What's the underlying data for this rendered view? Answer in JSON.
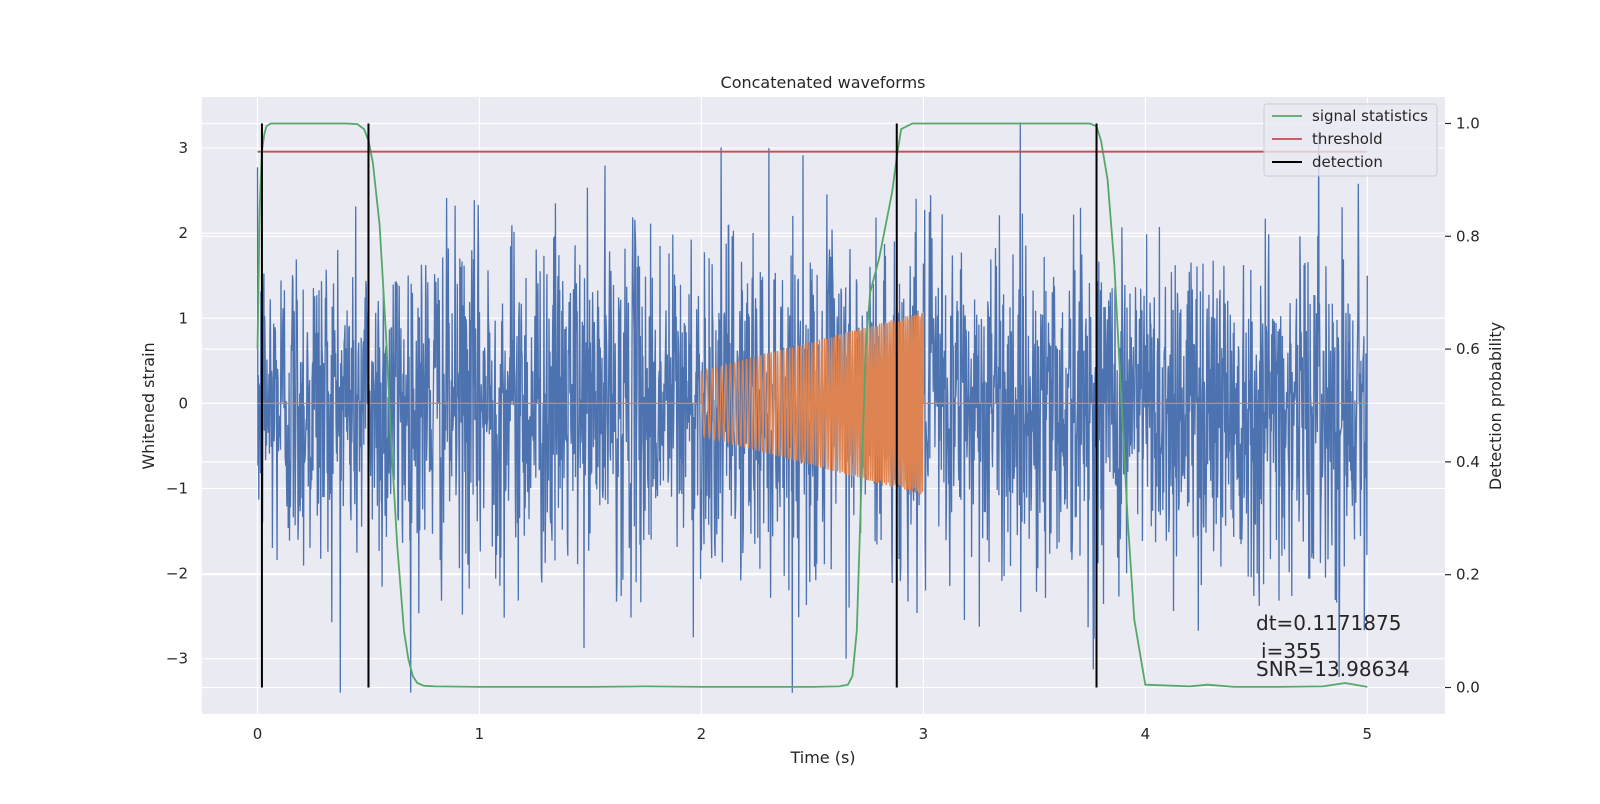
{
  "chart_data": {
    "type": "line",
    "title": "Concatenated waveforms",
    "xlabel": "Time (s)",
    "ylabel": "Whitened strain",
    "ylabel_right": "Detection probability",
    "xlim": [
      -0.25,
      5.35
    ],
    "ylim": [
      -3.65,
      3.6
    ],
    "ylim_right": [
      -0.047,
      1.047
    ],
    "xticks": [
      0,
      1,
      2,
      3,
      4,
      5
    ],
    "yticks": [
      -3,
      -2,
      -1,
      0,
      1,
      2,
      3
    ],
    "yticks_right": [
      0.0,
      0.2,
      0.4,
      0.6,
      0.8,
      1.0
    ],
    "yticks_right_labels": [
      "0.0",
      "0.2",
      "0.4",
      "0.6",
      "0.8",
      "1.0"
    ],
    "grid": true,
    "legend_position": "top-right",
    "legend": [
      {
        "label": "signal statistics",
        "color": "#55a868"
      },
      {
        "label": "threshold",
        "color": "#c44e52"
      },
      {
        "label": "detection",
        "color": "#000000"
      }
    ],
    "colors": {
      "noise": "#4c72b0",
      "injected_signal": "#dd8452",
      "signal_statistics": "#55a868",
      "threshold": "#c44e52",
      "detection": "#000000",
      "background": "#eaeaf2",
      "grid": "#ffffff"
    },
    "series": [
      {
        "name": "signal statistics",
        "axis": "right",
        "x": [
          0.0,
          0.01,
          0.02,
          0.03,
          0.04,
          0.06,
          0.08,
          0.1,
          0.2,
          0.3,
          0.4,
          0.45,
          0.48,
          0.5,
          0.52,
          0.55,
          0.58,
          0.6,
          0.63,
          0.66,
          0.68,
          0.7,
          0.72,
          0.75,
          0.8,
          1.0,
          1.5,
          1.75,
          2.0,
          2.3,
          2.5,
          2.62,
          2.66,
          2.68,
          2.7,
          2.72,
          2.74,
          2.76,
          2.8,
          2.83,
          2.86,
          2.88,
          2.9,
          2.95,
          3.0,
          3.5,
          3.7,
          3.75,
          3.78,
          3.8,
          3.83,
          3.86,
          3.88,
          3.9,
          3.92,
          3.95,
          4.0,
          4.2,
          4.28,
          4.4,
          4.6,
          4.8,
          4.9,
          5.0
        ],
        "y": [
          0.6,
          0.85,
          0.95,
          0.98,
          0.995,
          1.0,
          1.0,
          1.0,
          1.0,
          1.0,
          1.0,
          0.999,
          0.99,
          0.97,
          0.93,
          0.82,
          0.62,
          0.45,
          0.25,
          0.1,
          0.05,
          0.02,
          0.008,
          0.003,
          0.002,
          0.001,
          0.001,
          0.002,
          0.001,
          0.001,
          0.001,
          0.002,
          0.005,
          0.02,
          0.1,
          0.35,
          0.6,
          0.7,
          0.76,
          0.82,
          0.88,
          0.94,
          0.99,
          1.0,
          1.0,
          1.0,
          1.0,
          1.0,
          0.995,
          0.97,
          0.9,
          0.75,
          0.6,
          0.45,
          0.3,
          0.12,
          0.005,
          0.002,
          0.005,
          0.001,
          0.001,
          0.002,
          0.008,
          0.001
        ]
      },
      {
        "name": "threshold",
        "axis": "right",
        "x": [
          0.0,
          5.0
        ],
        "y": [
          0.95,
          0.95
        ]
      },
      {
        "name": "detection",
        "axis": "right",
        "type": "vlines",
        "x": [
          0.02,
          0.5,
          2.88,
          3.78
        ],
        "ymin": 0.0,
        "ymax": 1.0
      }
    ],
    "noise_trace": {
      "axis": "left",
      "x_range": [
        0.0,
        5.0
      ],
      "amplitude_range": [
        -3.4,
        3.3
      ]
    },
    "injected_signal": {
      "axis": "left",
      "x_range": [
        2.0,
        3.0
      ],
      "amplitude_start": 0.38,
      "amplitude_end": 1.08,
      "baseline": 0.0
    },
    "annotations": {
      "dt": "dt=0.1171875",
      "i": "i=355",
      "snr": "SNR=13.98634"
    }
  }
}
